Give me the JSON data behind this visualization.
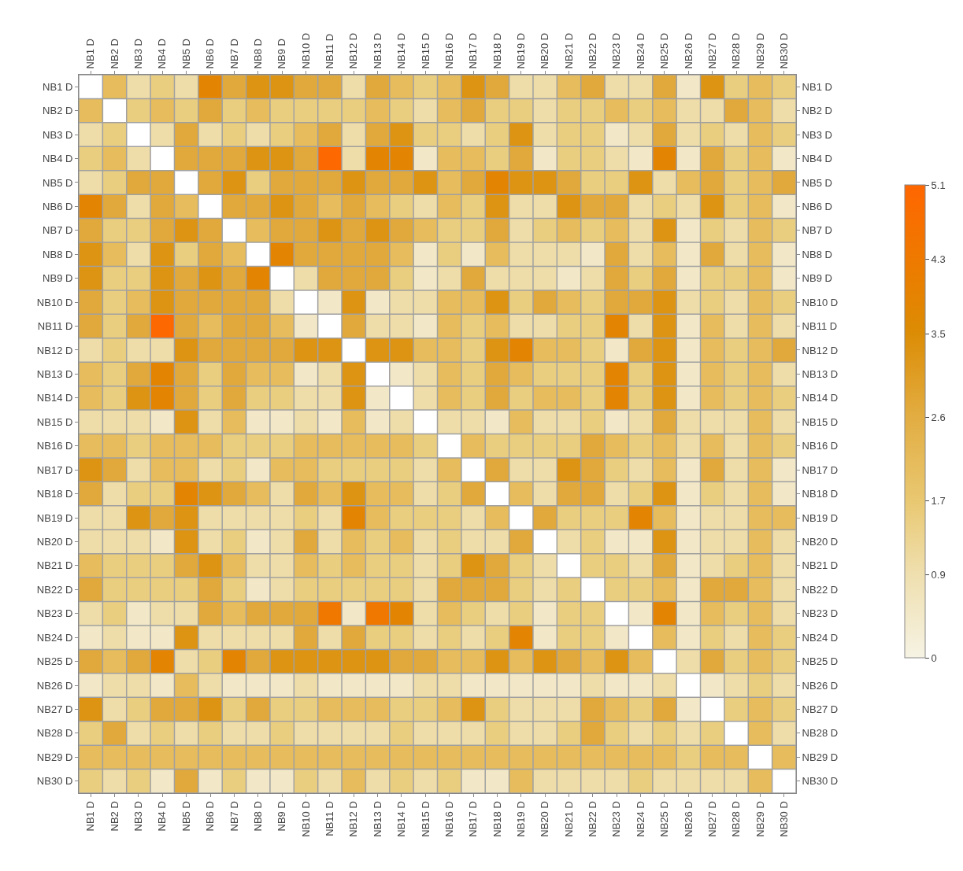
{
  "chart_data": {
    "type": "heatmap",
    "categories": [
      "NB1 D",
      "NB2 D",
      "NB3 D",
      "NB4 D",
      "NB5 D",
      "NB6 D",
      "NB7 D",
      "NB8 D",
      "NB9 D",
      "NB10 D",
      "NB11 D",
      "NB12 D",
      "NB13 D",
      "NB14 D",
      "NB15 D",
      "NB16 D",
      "NB17 D",
      "NB18 D",
      "NB19 D",
      "NB20 D",
      "NB21 D",
      "NB22 D",
      "NB23 D",
      "NB24 D",
      "NB25 D",
      "NB26 D",
      "NB27 D",
      "NB28 D",
      "NB29 D",
      "NB30 D"
    ],
    "y_categories": [
      "NB1 D",
      "NB2 D",
      "NB3 D",
      "NB4 D",
      "NB5 D",
      "NB6 D",
      "NB7 D",
      "NB8 D",
      "NB9 D",
      "NB10 D",
      "NB11 D",
      "NB12 D",
      "NB13 D",
      "NB14 D",
      "NB15 D",
      "NB16 D",
      "NB17 D",
      "NB18 D",
      "NB19 D",
      "NB20 D",
      "NB21 D",
      "NB22 D",
      "NB23 D",
      "NB24 D",
      "NB25 D",
      "NB26 D",
      "NB27 D",
      "NB28 D",
      "NB29 D",
      "NB30 D"
    ],
    "y2_categories": [
      "NB1 D",
      "NB2 D",
      "NB3 D",
      "NB4 D",
      "NB5 D",
      "NB6 D",
      "NB7 D",
      "NB8 D",
      "NB9 D",
      "NB10 D",
      "NB11 D",
      "NB12 D",
      "NB13 D",
      "NB14 D",
      "NB15 D",
      "NB16 D",
      "NB17 D",
      "NB18 D",
      "NB19 D",
      "NB20 D",
      "NB21 D",
      "NB22 D",
      "NB23 D",
      "NB24 D",
      "NB25 D",
      "NB26 D",
      "NB27 D",
      "NB28 D",
      "NB29 D",
      "NB30 D"
    ],
    "cells": [
      [
        null,
        2.1,
        1.0,
        1.5,
        1.0,
        3.8,
        2.7,
        3.3,
        3.3,
        2.7,
        2.7,
        1.0,
        2.7,
        2.1,
        1.5,
        2.1,
        3.3,
        2.7,
        1.0,
        1.0,
        2.1,
        2.7,
        1.0,
        1.0,
        2.7,
        0.5,
        3.3,
        1.5,
        2.1,
        1.5
      ],
      [
        2.1,
        null,
        1.5,
        2.1,
        1.5,
        2.7,
        1.5,
        2.1,
        1.5,
        1.5,
        1.5,
        1.5,
        2.1,
        1.5,
        1.0,
        2.1,
        2.7,
        1.5,
        1.5,
        1.0,
        1.5,
        1.5,
        2.1,
        1.5,
        2.1,
        1.0,
        1.0,
        2.7,
        2.1,
        1.0
      ],
      [
        1.0,
        1.5,
        null,
        1.0,
        2.7,
        1.0,
        1.5,
        1.0,
        1.5,
        2.1,
        2.7,
        1.0,
        2.7,
        3.3,
        1.5,
        1.5,
        1.0,
        1.5,
        3.3,
        1.0,
        1.5,
        1.5,
        0.5,
        1.0,
        2.7,
        1.0,
        1.5,
        1.0,
        2.1,
        1.5
      ],
      [
        1.5,
        2.1,
        1.0,
        null,
        2.7,
        2.7,
        2.7,
        3.3,
        3.3,
        2.7,
        5.0,
        1.0,
        3.8,
        3.8,
        0.5,
        2.1,
        2.1,
        1.5,
        2.7,
        0.5,
        1.5,
        1.5,
        1.0,
        0.5,
        3.8,
        0.5,
        2.7,
        1.5,
        2.1,
        0.5
      ],
      [
        1.0,
        1.5,
        2.7,
        2.7,
        null,
        2.7,
        3.3,
        1.5,
        2.7,
        2.7,
        2.7,
        3.3,
        2.7,
        2.7,
        3.3,
        2.1,
        2.7,
        3.8,
        3.3,
        3.3,
        2.7,
        1.5,
        1.5,
        3.3,
        1.0,
        2.1,
        2.7,
        1.5,
        2.1,
        2.7
      ],
      [
        3.8,
        2.7,
        1.0,
        2.7,
        2.1,
        null,
        2.7,
        2.7,
        3.3,
        2.7,
        2.1,
        2.7,
        2.1,
        1.5,
        1.0,
        2.1,
        1.5,
        3.3,
        1.0,
        1.0,
        3.3,
        2.7,
        2.7,
        1.0,
        1.5,
        1.0,
        3.3,
        1.5,
        2.1,
        0.5
      ],
      [
        2.7,
        1.5,
        1.5,
        2.7,
        3.3,
        2.7,
        null,
        2.1,
        2.7,
        2.7,
        3.3,
        2.7,
        3.3,
        2.7,
        2.1,
        1.5,
        1.5,
        2.7,
        1.0,
        1.5,
        2.1,
        1.5,
        2.1,
        1.0,
        3.3,
        0.5,
        1.5,
        1.0,
        2.1,
        1.5
      ],
      [
        3.3,
        2.1,
        1.0,
        3.3,
        1.5,
        2.7,
        2.1,
        null,
        3.8,
        2.7,
        2.7,
        2.7,
        2.7,
        2.1,
        0.5,
        1.5,
        0.5,
        2.1,
        1.0,
        1.0,
        1.0,
        0.5,
        2.7,
        1.0,
        2.1,
        0.5,
        2.7,
        1.0,
        2.1,
        0.5
      ],
      [
        3.3,
        1.5,
        1.5,
        3.3,
        2.7,
        3.3,
        2.7,
        3.8,
        null,
        1.0,
        2.7,
        2.7,
        2.7,
        1.5,
        0.5,
        1.0,
        2.7,
        1.0,
        1.0,
        1.0,
        0.5,
        1.0,
        2.7,
        1.5,
        2.7,
        0.5,
        1.5,
        1.5,
        2.1,
        0.5
      ],
      [
        2.7,
        1.5,
        2.1,
        3.3,
        2.7,
        2.7,
        2.7,
        2.7,
        1.0,
        null,
        0.5,
        3.3,
        0.5,
        1.0,
        1.0,
        2.1,
        2.1,
        3.3,
        1.5,
        2.7,
        2.1,
        1.5,
        2.7,
        2.7,
        3.3,
        1.0,
        1.5,
        1.0,
        2.1,
        1.5
      ],
      [
        2.7,
        1.5,
        2.7,
        5.0,
        2.7,
        2.1,
        2.7,
        2.7,
        2.1,
        0.5,
        null,
        2.7,
        1.0,
        1.0,
        0.5,
        2.1,
        1.5,
        2.1,
        1.0,
        1.0,
        1.5,
        1.5,
        3.8,
        1.0,
        3.3,
        0.5,
        2.1,
        1.0,
        2.1,
        1.0
      ],
      [
        1.0,
        1.5,
        1.0,
        1.0,
        3.3,
        2.7,
        2.7,
        2.7,
        2.7,
        3.3,
        3.3,
        null,
        3.3,
        3.3,
        2.1,
        2.1,
        1.5,
        3.3,
        3.8,
        2.1,
        2.1,
        1.5,
        0.5,
        2.7,
        3.3,
        0.5,
        2.1,
        1.5,
        2.1,
        2.7
      ],
      [
        2.1,
        1.5,
        2.7,
        3.8,
        2.7,
        1.5,
        2.7,
        2.1,
        2.1,
        0.5,
        1.0,
        3.3,
        null,
        0.5,
        1.0,
        2.1,
        1.5,
        2.7,
        2.1,
        1.5,
        1.5,
        1.5,
        3.8,
        1.5,
        3.3,
        0.5,
        2.1,
        1.5,
        2.1,
        1.0
      ],
      [
        2.1,
        1.5,
        3.3,
        3.8,
        2.7,
        1.5,
        2.7,
        1.5,
        1.5,
        1.0,
        1.0,
        3.3,
        0.5,
        null,
        1.0,
        2.1,
        1.5,
        2.7,
        1.5,
        2.1,
        2.1,
        1.5,
        3.8,
        1.5,
        3.3,
        0.5,
        2.1,
        1.5,
        2.1,
        1.5
      ],
      [
        1.0,
        1.0,
        1.0,
        0.5,
        3.3,
        1.0,
        2.1,
        0.5,
        0.5,
        1.0,
        0.5,
        2.1,
        0.5,
        1.0,
        null,
        1.0,
        1.0,
        0.5,
        2.1,
        1.0,
        1.0,
        1.5,
        0.5,
        1.0,
        2.7,
        1.0,
        1.0,
        1.0,
        2.1,
        1.0
      ],
      [
        2.1,
        2.1,
        1.5,
        2.1,
        2.1,
        2.1,
        1.5,
        1.5,
        1.5,
        2.1,
        2.1,
        2.1,
        2.1,
        2.1,
        1.5,
        null,
        2.1,
        1.5,
        1.5,
        1.5,
        1.5,
        2.7,
        2.1,
        1.5,
        2.1,
        1.0,
        2.1,
        1.0,
        2.1,
        1.5
      ],
      [
        3.3,
        2.7,
        1.0,
        2.1,
        2.1,
        1.0,
        1.5,
        0.5,
        2.1,
        2.1,
        1.5,
        1.5,
        1.5,
        1.5,
        1.0,
        2.1,
        null,
        2.7,
        1.0,
        1.0,
        3.3,
        2.7,
        1.5,
        1.0,
        2.1,
        0.5,
        2.7,
        1.0,
        2.1,
        0.5
      ],
      [
        2.7,
        1.0,
        1.5,
        1.5,
        3.8,
        3.3,
        2.7,
        2.1,
        1.0,
        2.7,
        2.1,
        3.3,
        2.1,
        2.1,
        1.0,
        1.5,
        2.7,
        null,
        2.1,
        1.0,
        2.7,
        2.7,
        1.0,
        1.5,
        3.3,
        0.5,
        1.5,
        1.0,
        2.1,
        0.5
      ],
      [
        1.0,
        1.0,
        3.3,
        2.7,
        3.3,
        1.0,
        1.0,
        1.0,
        1.0,
        1.5,
        1.0,
        3.8,
        2.1,
        1.5,
        1.5,
        1.5,
        1.0,
        2.1,
        null,
        2.7,
        1.5,
        1.5,
        1.5,
        3.8,
        2.1,
        0.5,
        1.0,
        1.0,
        2.1,
        2.1
      ],
      [
        1.0,
        1.0,
        1.0,
        0.5,
        3.3,
        1.0,
        1.5,
        0.5,
        1.0,
        2.7,
        1.0,
        2.1,
        1.5,
        2.1,
        1.0,
        1.5,
        1.0,
        1.0,
        2.7,
        null,
        1.0,
        1.5,
        0.5,
        0.5,
        3.3,
        0.5,
        1.0,
        1.0,
        2.1,
        1.0
      ],
      [
        2.1,
        1.5,
        1.5,
        1.5,
        2.7,
        3.3,
        2.1,
        1.0,
        1.0,
        2.1,
        1.5,
        2.1,
        1.5,
        1.5,
        1.0,
        1.5,
        3.3,
        2.7,
        1.5,
        1.0,
        null,
        1.5,
        1.5,
        1.0,
        2.7,
        0.5,
        1.0,
        1.5,
        2.1,
        1.0
      ],
      [
        2.7,
        1.5,
        1.5,
        1.5,
        1.5,
        2.7,
        1.5,
        0.5,
        1.0,
        1.5,
        1.5,
        1.5,
        1.5,
        1.5,
        1.0,
        2.7,
        2.7,
        2.7,
        1.5,
        1.0,
        1.5,
        null,
        1.5,
        1.5,
        2.1,
        0.5,
        2.7,
        2.7,
        2.1,
        1.0
      ],
      [
        1.0,
        1.5,
        0.5,
        1.0,
        1.0,
        2.7,
        2.1,
        2.7,
        2.7,
        2.7,
        4.4,
        0.5,
        4.4,
        3.8,
        1.0,
        2.1,
        1.5,
        1.0,
        1.5,
        0.5,
        1.5,
        1.5,
        null,
        0.5,
        3.8,
        0.5,
        2.1,
        1.5,
        2.1,
        1.0
      ],
      [
        0.5,
        1.0,
        0.5,
        0.5,
        3.3,
        1.0,
        1.0,
        1.0,
        1.0,
        2.7,
        1.0,
        2.7,
        1.5,
        1.5,
        1.0,
        1.5,
        1.0,
        1.5,
        3.8,
        0.5,
        1.5,
        1.5,
        0.5,
        null,
        2.1,
        0.5,
        1.5,
        1.0,
        2.1,
        1.5
      ],
      [
        2.7,
        2.1,
        2.7,
        3.8,
        1.0,
        1.5,
        3.8,
        2.7,
        3.3,
        3.3,
        3.3,
        3.3,
        3.3,
        2.7,
        2.7,
        2.1,
        2.1,
        3.3,
        2.1,
        3.3,
        2.7,
        2.1,
        3.3,
        2.1,
        null,
        1.0,
        2.7,
        1.5,
        2.1,
        1.5
      ],
      [
        0.5,
        1.0,
        1.0,
        0.5,
        2.1,
        1.0,
        0.5,
        0.5,
        0.5,
        1.0,
        0.5,
        0.5,
        0.5,
        0.5,
        1.0,
        1.0,
        0.5,
        0.5,
        0.5,
        0.5,
        0.5,
        1.0,
        0.5,
        0.5,
        1.0,
        null,
        0.5,
        1.0,
        1.5,
        1.0
      ],
      [
        3.3,
        1.0,
        1.5,
        2.7,
        2.7,
        3.3,
        1.5,
        2.7,
        1.5,
        1.5,
        2.1,
        2.1,
        2.1,
        1.5,
        1.5,
        2.1,
        3.3,
        1.5,
        1.0,
        1.0,
        1.0,
        2.7,
        2.1,
        1.5,
        2.7,
        0.5,
        null,
        1.5,
        2.1,
        1.5
      ],
      [
        1.5,
        2.7,
        1.0,
        1.5,
        1.0,
        1.5,
        1.0,
        1.0,
        1.5,
        1.0,
        1.0,
        1.0,
        1.0,
        1.5,
        1.0,
        1.0,
        1.0,
        1.5,
        1.0,
        1.0,
        1.5,
        2.7,
        1.5,
        1.0,
        1.5,
        1.0,
        1.5,
        null,
        2.1,
        1.0
      ],
      [
        2.1,
        2.1,
        2.1,
        2.1,
        2.1,
        2.1,
        2.1,
        2.1,
        2.1,
        2.1,
        2.1,
        2.1,
        2.1,
        2.1,
        2.1,
        2.1,
        2.1,
        2.1,
        2.1,
        2.1,
        2.1,
        2.1,
        2.1,
        2.1,
        2.1,
        1.5,
        2.1,
        2.1,
        null,
        2.1
      ],
      [
        1.5,
        1.0,
        1.5,
        0.5,
        2.7,
        0.5,
        1.5,
        0.5,
        0.5,
        1.5,
        1.0,
        2.1,
        1.0,
        1.5,
        1.0,
        1.5,
        0.5,
        0.5,
        2.1,
        1.0,
        1.0,
        1.0,
        1.0,
        1.5,
        1.0,
        1.0,
        1.0,
        1.0,
        2.1,
        null
      ]
    ],
    "clim": [
      0,
      5.1
    ],
    "cticks": [
      0,
      0.9,
      1.7,
      2.6,
      3.5,
      4.3,
      5.1
    ]
  }
}
